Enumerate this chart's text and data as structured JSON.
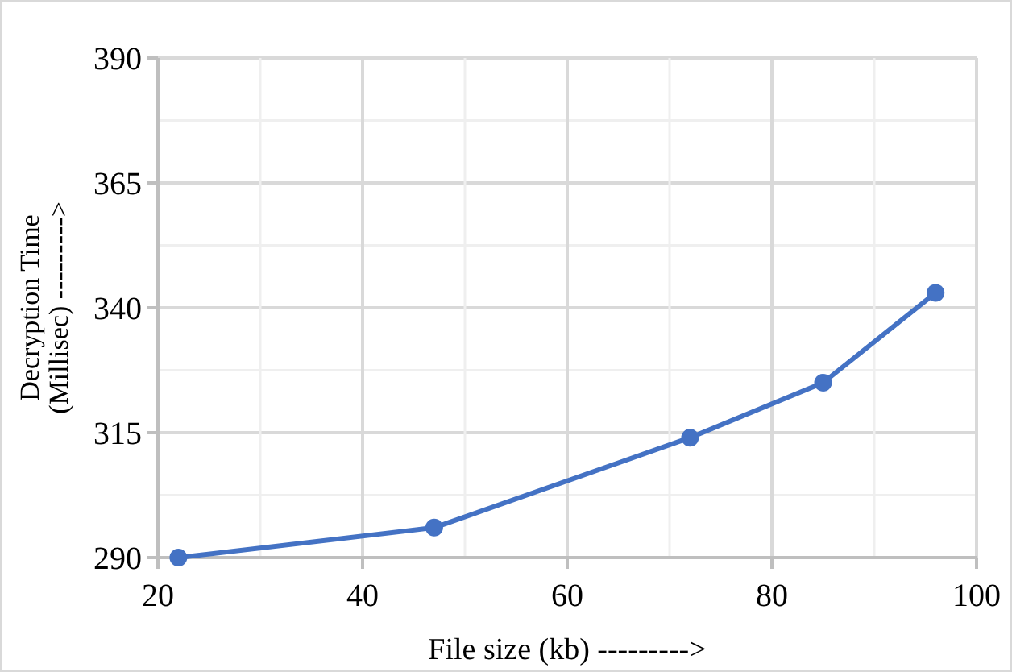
{
  "chart_data": {
    "type": "line",
    "xlabel": "File size (kb) --------->",
    "ylabel": "Decryption Time (Millisec) --------->",
    "x": [
      22,
      47,
      72,
      85,
      96
    ],
    "series": [
      {
        "color": "#4472c4",
        "values": [
          290,
          296,
          314,
          325,
          343
        ]
      }
    ],
    "xlim": [
      20,
      100
    ],
    "xticks": [
      20,
      {
        "value": 30,
        "label": null
      },
      40,
      {
        "value": 50,
        "label": null
      },
      60,
      {
        "value": 70,
        "label": null
      },
      80,
      {
        "value": 90,
        "label": null
      },
      100
    ],
    "ylim": [
      290,
      390
    ],
    "yticks": [
      290,
      {
        "value": 302.5,
        "label": null
      },
      315,
      {
        "value": 327.5,
        "label": null
      },
      340,
      {
        "value": 352.5,
        "label": null
      },
      365,
      {
        "value": 377.5,
        "label": null
      },
      390
    ],
    "grid": true,
    "marker": "circle",
    "line_style": "solid"
  }
}
